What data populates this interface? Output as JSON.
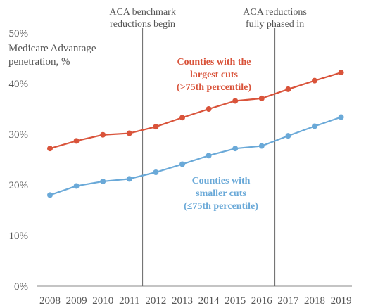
{
  "chart_data": {
    "type": "line",
    "ylabel_lines": [
      "Medicare Advantage",
      "penetration, %"
    ],
    "x": [
      "2008",
      "2009",
      "2010",
      "2011",
      "2012",
      "2013",
      "2014",
      "2015",
      "2016",
      "2017",
      "2018",
      "2019"
    ],
    "ylim": [
      0,
      50
    ],
    "yticks": [
      "0%",
      "10%",
      "20%",
      "30%",
      "40%",
      "50%"
    ],
    "grid": false,
    "colors": {
      "largest": "#d9533a",
      "smaller": "#6aa9d8",
      "axis": "#888888",
      "refline": "#666666"
    },
    "series": [
      {
        "key": "largest",
        "label_lines": [
          "Counties with the",
          "largest cuts",
          "(>75th percentile)"
        ],
        "values": [
          27.2,
          28.7,
          29.9,
          30.2,
          31.5,
          33.3,
          35.0,
          36.6,
          37.1,
          38.9,
          40.6,
          42.2
        ]
      },
      {
        "key": "smaller",
        "label_lines": [
          "Counties with",
          "smaller cuts",
          "(≤75th percentile)"
        ],
        "values": [
          18.0,
          19.8,
          20.7,
          21.2,
          22.5,
          24.1,
          25.8,
          27.2,
          27.7,
          29.7,
          31.6,
          33.4
        ]
      }
    ],
    "reference_lines": [
      {
        "between": [
          "2011",
          "2012"
        ],
        "label_lines": [
          "ACA benchmark",
          "reductions begin"
        ]
      },
      {
        "between": [
          "2016",
          "2017"
        ],
        "label_lines": [
          "ACA reductions",
          "fully phased in"
        ]
      }
    ]
  }
}
